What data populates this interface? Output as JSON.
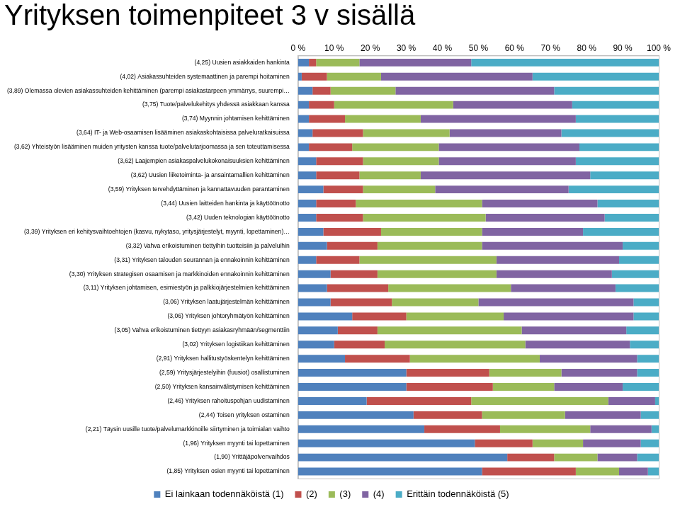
{
  "chart_data": {
    "type": "bar",
    "title": "Yrityksen toimenpiteet 3 v sisällä",
    "orientation": "horizontal",
    "stacked": true,
    "grid": false,
    "legend": "bottom",
    "categories": [
      "(4,25) Uusien asiakkaiden hankinta",
      "(4,02) Asiakassuhteiden systemaattinen ja parempi hoitaminen",
      "(3,89) Olemassa olevien asiakassuhteiden kehittäminen (parempi asiakastarpeen ymmärrys, suurempi…",
      "(3,75) Tuote/palvelukehitys yhdessä asiakkaan kanssa",
      "(3,74) Myynnin johtamisen kehittäminen",
      "(3,64) IT- ja Web-osaamisen lisääminen asiakaskohtaisissa palveluratkaisuissa",
      "(3,62) Yhteistyön lisääminen muiden yritysten kanssa tuote/palvelutarjoomassa ja sen toteuttamisessa",
      "(3,62) Laajempien asiakaspalvelukokonaisuuksien kehittäminen",
      "(3,62) Uusien liiketoiminta- ja ansaintamallien kehittäminen",
      "(3,59) Yrityksen tervehdyttäminen ja kannattavuuden parantaminen",
      "(3,44) Uusien laitteiden hankinta ja käyttöönotto",
      "(3,42) Uuden teknologian käyttöönotto",
      "(3,39) Yrityksen eri kehitysvaihtoehtojen (kasvu, nykytaso, yritysjärjestelyt, myynti, lopettaminen)…",
      "(3,32) Vahva erikoistuminen tiettyihin tuotteisiin ja palveluihin",
      "(3,31) Yrityksen talouden seurannan ja ennakoinnin kehittäminen",
      "(3,30) Yrityksen strategisen osaamisen ja markkinoiden ennakoinnin kehittäminen",
      "(3,11) Yrityksen johtamisen, esimiestyön ja palkkiojärjestelmien kehittäminen",
      "(3,06) Yrityksen laatujärjestelmän kehittäminen",
      "(3,06) Yrityksen johtoryhmätyön kehittäminen",
      "(3,05) Vahva erikoistuminen tiettyyn asiakasryhmään/segmenttiin",
      "(3,02) Yrityksen logistiikan kehittäminen",
      "(2,91) Yrityksen hallitustyöskentelyn kehittäminen",
      "(2,59) Yritysjärjestelyihin (fuusiot) osallistuminen",
      "(2,50) Yrityksen kansainvälistymisen kehittäminen",
      "(2,46) Yrityksen rahoituspohjan uudistaminen",
      "(2,44) Toisen yrityksen ostaminen",
      "(2,21) Täysin uusille tuote/palvelumarkkinoille siirtyminen ja toimialan vaihto",
      "(1,96) Yrityksen myynti tai lopettaminen",
      "(1,90) Yrittäjäpolvenvaihdos",
      "(1,85) Yrityksen osien myynti tai lopettaminen"
    ],
    "series": [
      {
        "name": "Ei lainkaan todennäköistä (1)",
        "color": "#4f81bd",
        "values": [
          3,
          1,
          4,
          3,
          3,
          4,
          3,
          5,
          5,
          7,
          5,
          5,
          7,
          8,
          5,
          9,
          8,
          9,
          15,
          11,
          10,
          13,
          30,
          30,
          19,
          32,
          35,
          49,
          58,
          51
        ]
      },
      {
        "name": "(2)",
        "color": "#c0504d",
        "values": [
          2,
          7,
          5,
          7,
          10,
          14,
          12,
          13,
          12,
          11,
          11,
          13,
          16,
          14,
          12,
          13,
          17,
          17,
          15,
          11,
          14,
          18,
          23,
          24,
          29,
          19,
          21,
          16,
          13,
          26
        ]
      },
      {
        "name": "(3)",
        "color": "#9bbb59",
        "values": [
          12,
          15,
          18,
          33,
          21,
          24,
          24,
          21,
          17,
          20,
          35,
          34,
          28,
          29,
          38,
          33,
          34,
          24,
          27,
          40,
          39,
          36,
          20,
          17,
          38,
          23,
          25,
          14,
          12,
          12
        ]
      },
      {
        "name": "(4)",
        "color": "#8064a2",
        "values": [
          31,
          42,
          44,
          33,
          43,
          31,
          39,
          38,
          47,
          37,
          32,
          33,
          28,
          39,
          34,
          32,
          29,
          43,
          36,
          29,
          29,
          27,
          21,
          19,
          13,
          21,
          17,
          16,
          11,
          8
        ]
      },
      {
        "name": "Erittäin todennäköistä (5)",
        "color": "#4bacc6",
        "values": [
          52,
          35,
          29,
          24,
          23,
          27,
          22,
          23,
          19,
          25,
          17,
          15,
          21,
          10,
          11,
          13,
          12,
          7,
          7,
          9,
          8,
          6,
          6,
          10,
          1,
          5,
          2,
          5,
          6,
          3
        ]
      }
    ],
    "xlim": [
      0,
      100
    ],
    "xticks": [
      {
        "value": 0,
        "label": "0 %"
      },
      {
        "value": 10,
        "label": "10 %"
      },
      {
        "value": 20,
        "label": "20 %"
      },
      {
        "value": 30,
        "label": "30 %"
      },
      {
        "value": 40,
        "label": "40 %"
      },
      {
        "value": 50,
        "label": "50 %"
      },
      {
        "value": 60,
        "label": "60 %"
      },
      {
        "value": 70,
        "label": "70 %"
      },
      {
        "value": 80,
        "label": "80 %"
      },
      {
        "value": 90,
        "label": "90 %"
      },
      {
        "value": 100,
        "label": "100 %"
      }
    ]
  }
}
